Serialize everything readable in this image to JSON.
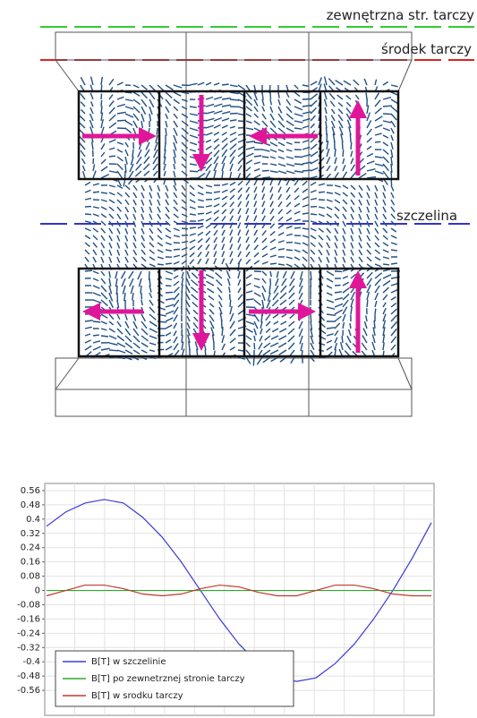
{
  "diagram": {
    "labels": [
      "zewnętrzna str. tarczy",
      "środek tarczy",
      "szczelina"
    ]
  },
  "chart_data": {
    "type": "line",
    "ylim": [
      -0.7,
      0.6
    ],
    "yticks": [
      0.56,
      0.48,
      0.4,
      0.32,
      0.24,
      0.16,
      0.08,
      0,
      -0.08,
      -0.16,
      -0.24,
      -0.32,
      -0.4,
      -0.48,
      -0.56
    ],
    "grid": true,
    "legend": "lower-left",
    "series": [
      {
        "name": "B[T] w szczelinie",
        "color": "#3a3ad8",
        "values": [
          0.36,
          0.44,
          0.49,
          0.51,
          0.49,
          0.41,
          0.3,
          0.16,
          0,
          -0.16,
          -0.3,
          -0.41,
          -0.49,
          -0.51,
          -0.49,
          -0.41,
          -0.3,
          -0.16,
          0,
          0.18,
          0.38
        ]
      },
      {
        "name": "B[T] po zewnetrznej stronie tarczy",
        "color": "#2faa2f",
        "values": [
          0,
          0,
          0,
          0,
          0,
          0,
          0,
          0,
          0,
          0,
          0,
          0,
          0,
          0,
          0,
          0,
          0,
          0,
          0,
          0,
          0
        ]
      },
      {
        "name": "B[T] w srodku tarczy",
        "color": "#c0392b",
        "values": [
          -0.03,
          0,
          0.03,
          0.03,
          0.01,
          -0.02,
          -0.03,
          -0.02,
          0.01,
          0.03,
          0.02,
          -0.01,
          -0.03,
          -0.03,
          0,
          0.03,
          0.03,
          0.01,
          -0.02,
          -0.03,
          -0.03
        ]
      }
    ]
  }
}
